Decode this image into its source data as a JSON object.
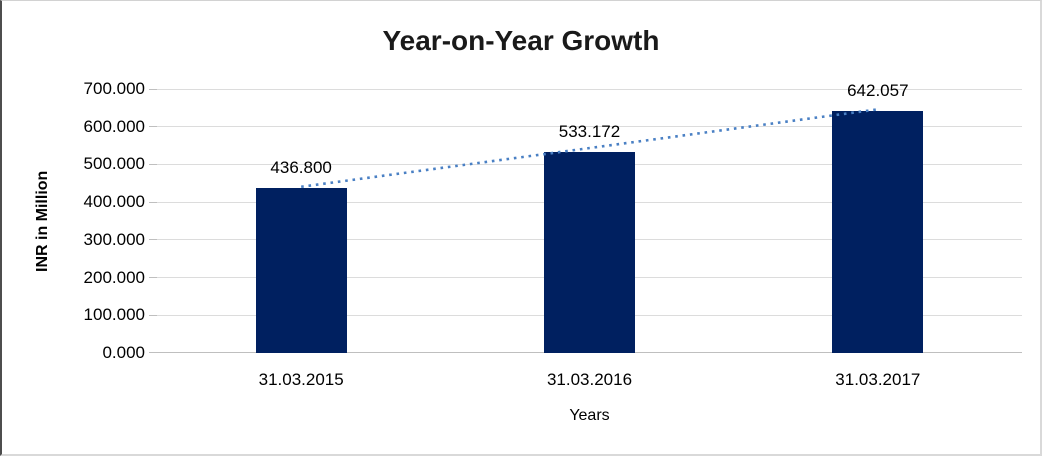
{
  "chart_data": {
    "type": "bar",
    "title": "Year-on-Year Growth",
    "xlabel": "Years",
    "ylabel": "INR in Million",
    "categories": [
      "31.03.2015",
      "31.03.2016",
      "31.03.2017"
    ],
    "values": [
      436.8,
      533.172,
      642.057
    ],
    "value_labels": [
      "436.800",
      "533.172",
      "642.057"
    ],
    "ylim": [
      0,
      700
    ],
    "ytick_labels": [
      "0.000",
      "100.000",
      "200.000",
      "300.000",
      "400.000",
      "500.000",
      "600.000",
      "700.000"
    ],
    "grid": "horizontal",
    "legend": "none",
    "trendline": {
      "type": "linear",
      "style": "dotted",
      "from": "first-bar-top",
      "to": "last-bar-top"
    },
    "colors": {
      "bar": "#002060",
      "trendline": "#4a80c4",
      "gridline": "#dcdcdc",
      "axis_line": "#bfbfbf",
      "text": "#000000",
      "background": "#ffffff"
    }
  }
}
